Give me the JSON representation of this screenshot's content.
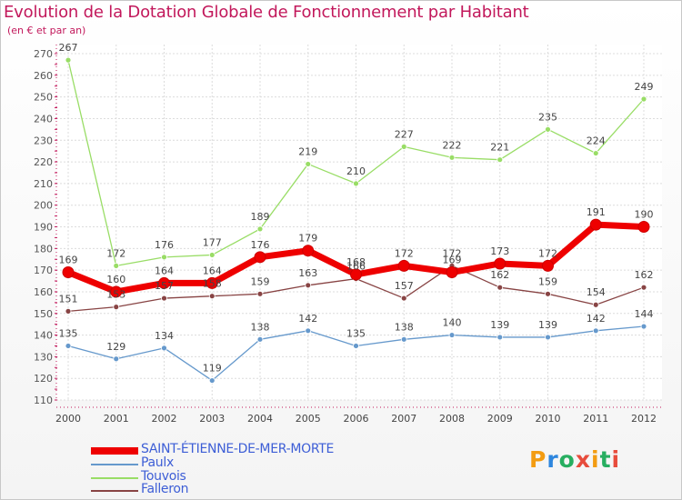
{
  "title": "Evolution de la Dotation Globale de Fonctionnement par Habitant",
  "subtitle": "(en € et par an)",
  "logo": {
    "text": "Proxiti",
    "letters": [
      "P",
      "r",
      "o",
      "x",
      "i",
      "t",
      "i"
    ],
    "colors": [
      "#f39c12",
      "#2e86de",
      "#27ae60",
      "#e74c3c",
      "#f39c12",
      "#27ae60",
      "#e74c3c"
    ]
  },
  "colors": {
    "title": "#c2185b",
    "axis": "#c2185b",
    "legend_text": "#3d5ed6",
    "grid": "#dcdcdc"
  },
  "chart_data": {
    "type": "line",
    "x": [
      "2000",
      "2001",
      "2002",
      "2003",
      "2004",
      "2005",
      "2006",
      "2007",
      "2008",
      "2009",
      "2010",
      "2011",
      "2012"
    ],
    "ylim": [
      110,
      270
    ],
    "yticks": [
      110,
      120,
      130,
      140,
      150,
      160,
      170,
      180,
      190,
      200,
      210,
      220,
      230,
      240,
      250,
      260,
      270
    ],
    "grid": true,
    "legend_position": "bottom-left",
    "series": [
      {
        "name": "SAINT-ÉTIENNE-DE-MER-MORTE",
        "color": "#ee0000",
        "width": 7,
        "marker": 6,
        "values": [
          169,
          160,
          164,
          164,
          176,
          179,
          168,
          172,
          169,
          173,
          172,
          191,
          190
        ]
      },
      {
        "name": "Paulx",
        "color": "#6699cc",
        "width": 1.3,
        "marker": 3,
        "values": [
          135,
          129,
          134,
          119,
          138,
          142,
          135,
          138,
          140,
          139,
          139,
          142,
          144
        ]
      },
      {
        "name": "Touvois",
        "color": "#99dd66",
        "width": 1.3,
        "marker": 3,
        "values": [
          267,
          172,
          176,
          177,
          189,
          219,
          210,
          227,
          222,
          221,
          235,
          224,
          249
        ]
      },
      {
        "name": "Falleron",
        "color": "#884444",
        "width": 1.3,
        "marker": 3,
        "values": [
          151,
          153,
          157,
          158,
          159,
          163,
          166,
          157,
          172,
          162,
          159,
          154,
          162
        ]
      }
    ]
  }
}
